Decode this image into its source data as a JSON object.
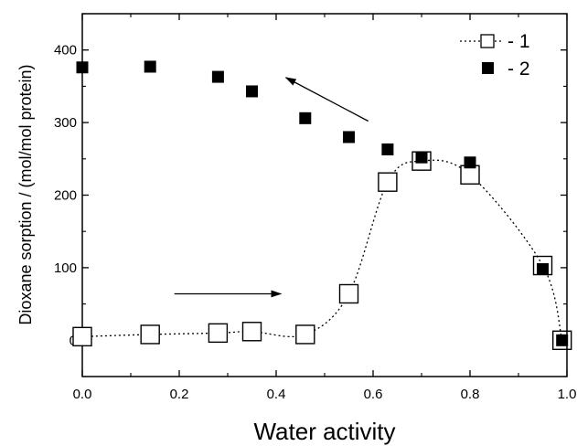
{
  "chart_data": {
    "type": "scatter",
    "xlabel": "Water activity",
    "ylabel": "Dioxane sorption / (mol/mol protein)",
    "xlim": [
      0.0,
      1.0
    ],
    "ylim": [
      -50,
      450
    ],
    "x_ticks": [
      "0.0",
      "0.2",
      "0.4",
      "0.6",
      "0.8",
      "1.0"
    ],
    "y_ticks": [
      "0",
      "100",
      "200",
      "300",
      "400"
    ],
    "grid": false,
    "legend_position": "top-right",
    "series": [
      {
        "name": "- 1",
        "marker": "open-square",
        "line": "dotted",
        "x": [
          0.0,
          0.14,
          0.28,
          0.35,
          0.46,
          0.55,
          0.63,
          0.7,
          0.8,
          0.95,
          0.99
        ],
        "y": [
          5,
          8,
          10,
          12,
          8,
          64,
          218,
          247,
          228,
          103,
          0
        ]
      },
      {
        "name": "- 2",
        "marker": "filled-square",
        "line": "none",
        "x": [
          0.0,
          0.14,
          0.28,
          0.35,
          0.46,
          0.55,
          0.63,
          0.7,
          0.8,
          0.95,
          0.99
        ],
        "y": [
          376,
          377,
          363,
          343,
          306,
          280,
          263,
          252,
          245,
          98,
          0
        ]
      }
    ],
    "annotations": [
      {
        "type": "arrow",
        "direction": "left-up",
        "from": [
          0.59,
          302
        ],
        "to": [
          0.42,
          362
        ]
      },
      {
        "type": "arrow",
        "direction": "right",
        "from": [
          0.19,
          64
        ],
        "to": [
          0.41,
          64
        ]
      }
    ]
  }
}
